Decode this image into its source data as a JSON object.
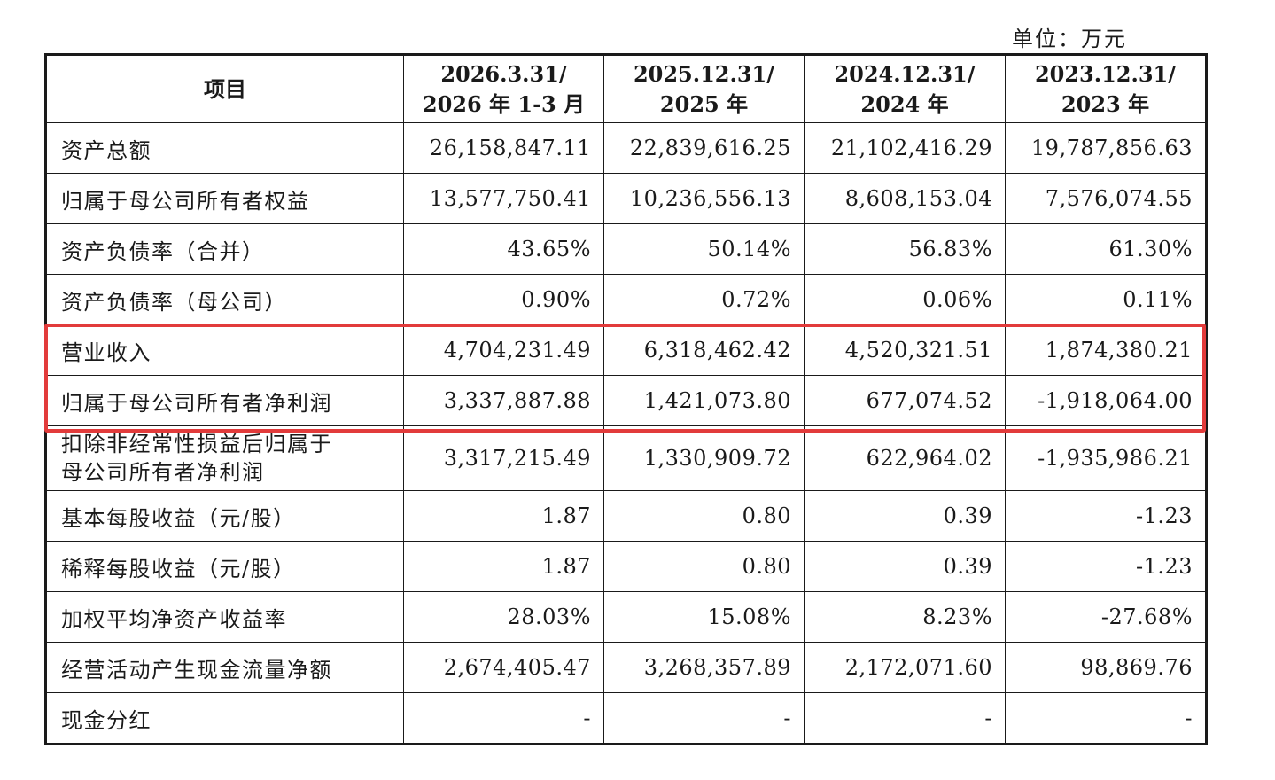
{
  "unit": "单位：万元",
  "header": {
    "item": "项目",
    "columns": [
      {
        "line1": "2026.3.31/",
        "line2": "2026 年 1-3 月"
      },
      {
        "line1": "2025.12.31/",
        "line2": "2025 年"
      },
      {
        "line1": "2024.12.31/",
        "line2": "2024 年"
      },
      {
        "line1": "2023.12.31/",
        "line2": "2023 年"
      }
    ]
  },
  "rows": [
    {
      "label": "资产总额",
      "values": [
        "26,158,847.11",
        "22,839,616.25",
        "21,102,416.29",
        "19,787,856.63"
      ]
    },
    {
      "label": "归属于母公司所有者权益",
      "values": [
        "13,577,750.41",
        "10,236,556.13",
        "8,608,153.04",
        "7,576,074.55"
      ]
    },
    {
      "label": "资产负债率（合并）",
      "values": [
        "43.65%",
        "50.14%",
        "56.83%",
        "61.30%"
      ]
    },
    {
      "label": "资产负债率（母公司）",
      "values": [
        "0.90%",
        "0.72%",
        "0.06%",
        "0.11%"
      ]
    },
    {
      "label": "营业收入",
      "values": [
        "4,704,231.49",
        "6,318,462.42",
        "4,520,321.51",
        "1,874,380.21"
      ]
    },
    {
      "label": "归属于母公司所有者净利润",
      "values": [
        "3,337,887.88",
        "1,421,073.80",
        "677,074.52",
        "-1,918,064.00"
      ]
    },
    {
      "label_line1": "扣除非经常性损益后归属于",
      "label_line2": "母公司所有者净利润",
      "values": [
        "3,317,215.49",
        "1,330,909.72",
        "622,964.02",
        "-1,935,986.21"
      ]
    },
    {
      "label": "基本每股收益（元/股）",
      "values": [
        "1.87",
        "0.80",
        "0.39",
        "-1.23"
      ]
    },
    {
      "label": "稀释每股收益（元/股）",
      "values": [
        "1.87",
        "0.80",
        "0.39",
        "-1.23"
      ]
    },
    {
      "label": "加权平均净资产收益率",
      "values": [
        "28.03%",
        "15.08%",
        "8.23%",
        "-27.68%"
      ]
    },
    {
      "label": "经营活动产生现金流量净额",
      "values": [
        "2,674,405.47",
        "3,268,357.89",
        "2,172,071.60",
        "98,869.76"
      ]
    },
    {
      "label": "现金分红",
      "values": [
        "-",
        "-",
        "-",
        "-"
      ]
    }
  ],
  "highlight_color": "#e23b3b"
}
